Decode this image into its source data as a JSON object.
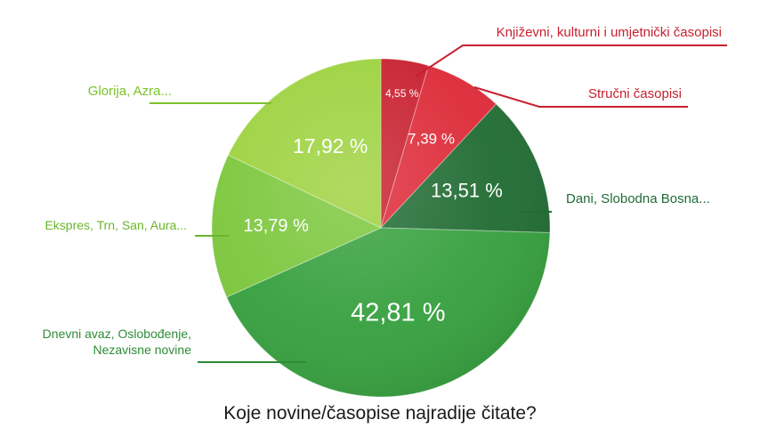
{
  "chart_data": {
    "type": "pie",
    "title": "Koje novine/časopise najradije čitate?",
    "slices": [
      {
        "label": "Književni, kulturni i umjetnički časopisi",
        "value": 4.55,
        "value_label": "4,55 %",
        "color": "#c8202f",
        "label_color": "#c8202f"
      },
      {
        "label": "Stručni časopisi",
        "value": 7.39,
        "value_label": "7,39 %",
        "color": "#dd2a38",
        "label_color": "#c8202f"
      },
      {
        "label": "Dani, Slobodna Bosna...",
        "value": 13.51,
        "value_label": "13,51 %",
        "color": "#216c34",
        "label_color": "#216c34"
      },
      {
        "label": "Dnevni avaz, Oslobođenje, Nezavisne novine",
        "label_lines": [
          "Dnevni avaz, Oslobođenje,",
          "Nezavisne novine"
        ],
        "value": 42.81,
        "value_label": "42,81 %",
        "color": "#37a03f",
        "label_color": "#2e8b36"
      },
      {
        "label": "Ekspres, Trn, San, Aura...",
        "value": 13.79,
        "value_label": "13,79 %",
        "color": "#7cc73d",
        "label_color": "#6cb52c"
      },
      {
        "label": "Glorija, Azra...",
        "value": 17.92,
        "value_label": "17,92 %",
        "color": "#9dd23f",
        "label_color": "#7cc22a"
      }
    ]
  }
}
